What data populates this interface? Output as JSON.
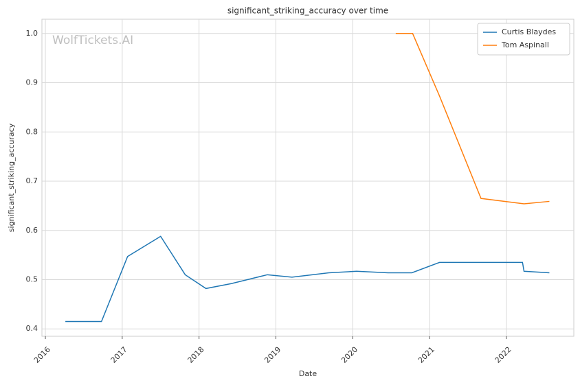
{
  "chart_data": {
    "type": "line",
    "title": "significant_striking_accuracy over time",
    "xlabel": "Date",
    "ylabel": "significant_striking_accuracy",
    "watermark": "WolfTickets.AI",
    "xlim": [
      2015.955,
      2022.878
    ],
    "xticks": [
      2016,
      2017,
      2018,
      2019,
      2020,
      2021,
      2022
    ],
    "ylim": [
      0.385,
      1.029
    ],
    "yticks": [
      0.4,
      0.5,
      0.6,
      0.7,
      0.8,
      0.9,
      {
        "value": 1,
        "label": "1.0"
      }
    ],
    "grid": true,
    "legend": "upper right",
    "series": [
      {
        "name": "Curtis Blaydes",
        "color": "#1f77b4",
        "x": [
          2016.26,
          2016.73,
          2017.07,
          2017.5,
          2017.82,
          2018.09,
          2018.42,
          2018.89,
          2019.21,
          2019.69,
          2020.05,
          2020.46,
          2020.77,
          2021.13,
          2021.67,
          2022.21,
          2022.23,
          2022.56
        ],
        "values": [
          0.415,
          0.415,
          0.547,
          0.588,
          0.51,
          0.482,
          0.492,
          0.51,
          0.505,
          0.514,
          0.517,
          0.514,
          0.514,
          0.535,
          0.535,
          0.535,
          0.517,
          0.514
        ]
      },
      {
        "name": "Tom Aspinall",
        "color": "#ff7f0e",
        "x": [
          2020.56,
          2020.78,
          2021.13,
          2021.67,
          2022.23,
          2022.56
        ],
        "values": [
          1.0,
          1.0,
          0.873,
          0.665,
          0.654,
          0.659
        ]
      }
    ]
  }
}
